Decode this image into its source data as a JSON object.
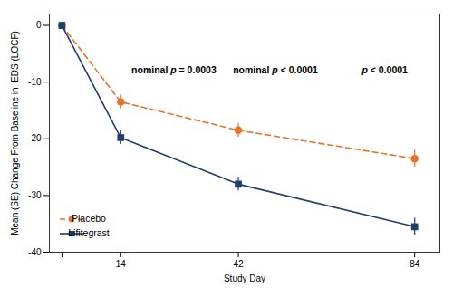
{
  "chart_data": {
    "type": "line",
    "xlabel": "Study Day",
    "ylabel": "Mean (SE) Change From Baseline in  EDS (LOCF)",
    "x": [
      0,
      14,
      42,
      84
    ],
    "xlim": [
      -3,
      90
    ],
    "xticks": [
      {
        "value": 0,
        "label": null
      },
      14,
      42,
      84
    ],
    "ylim": [
      -40,
      2
    ],
    "yticks": [
      0,
      -10,
      -20,
      -30,
      -40
    ],
    "series": [
      {
        "name": "Placebo",
        "color": "#E8722A",
        "values": [
          0,
          -13.5,
          -18.5,
          -23.5
        ],
        "errors": [
          0,
          1.2,
          1.2,
          1.5
        ],
        "marker": "circle",
        "line_style": "dashed"
      },
      {
        "name": "Lifitegrast",
        "color": "#1F3F6E",
        "values": [
          0,
          -19.8,
          -28.0,
          -35.5
        ],
        "errors": [
          0,
          1.2,
          1.2,
          1.5
        ],
        "marker": "square",
        "line_style": "solid"
      }
    ],
    "annotations": [
      "nominal p = 0.0003",
      "nominal p < 0.0001",
      "p < 0.0001"
    ],
    "legend": "lower left"
  }
}
